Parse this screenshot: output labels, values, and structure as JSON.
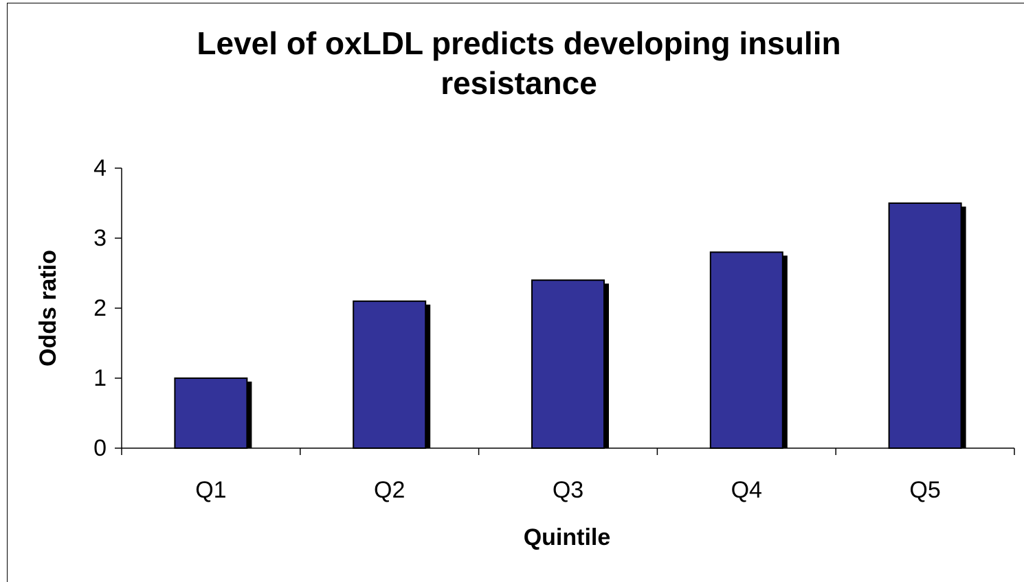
{
  "chart_data": {
    "type": "bar",
    "title": "Level of oxLDL predicts developing insulin resistance",
    "x_label": "Quintile",
    "y_label": "Odds ratio",
    "categories": [
      "Q1",
      "Q2",
      "Q3",
      "Q4",
      "Q5"
    ],
    "values": [
      1.0,
      2.1,
      2.4,
      2.8,
      3.5
    ],
    "color": "#333399",
    "ylim": [
      0,
      4
    ],
    "yticks": [
      0,
      1,
      2,
      3,
      4
    ],
    "grid": false
  }
}
